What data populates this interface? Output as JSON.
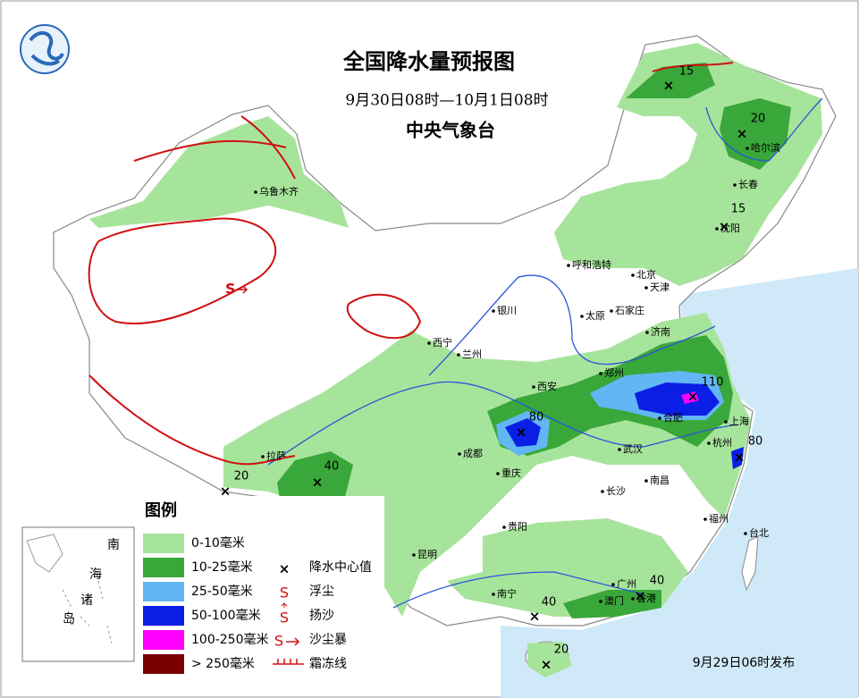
{
  "header": {
    "title": "全国降水量预报图",
    "subtitle": "9月30日08时—10月1日08时",
    "agency": "中央气象台"
  },
  "cities": [
    "乌鲁木齐",
    "呼和浩特",
    "北京",
    "天津",
    "石家庄",
    "太原",
    "银川",
    "西宁",
    "兰州",
    "济南",
    "郑州",
    "西安",
    "合肥",
    "上海",
    "杭州",
    "武汉",
    "成都",
    "重庆",
    "拉萨",
    "南昌",
    "长沙",
    "福州",
    "台北",
    "贵阳",
    "昆明",
    "南宁",
    "广州",
    "澳门",
    "香港",
    "哈尔滨",
    "长春",
    "沈阳"
  ],
  "centers": [
    15,
    20,
    15,
    110,
    80,
    80,
    40,
    20,
    40,
    40,
    20
  ],
  "legend": {
    "title": "图例",
    "items": [
      {
        "label": "0-10毫米",
        "color": "#a7e49b"
      },
      {
        "label": "10-25毫米",
        "color": "#3aa73a"
      },
      {
        "label": "25-50毫米",
        "color": "#63b6f4"
      },
      {
        "label": "50-100毫米",
        "color": "#0a1ee6"
      },
      {
        "label": "100-250毫米",
        "color": "#ff00ff"
      },
      {
        "label": "> 250毫米",
        "color": "#7a0000"
      }
    ],
    "symbols": [
      "降水中心值",
      "浮尘",
      "扬沙",
      "沙尘暴",
      "霜冻线"
    ]
  },
  "inset": [
    "南",
    "海",
    "诸",
    "岛"
  ],
  "footer": "9月29日06时发布"
}
